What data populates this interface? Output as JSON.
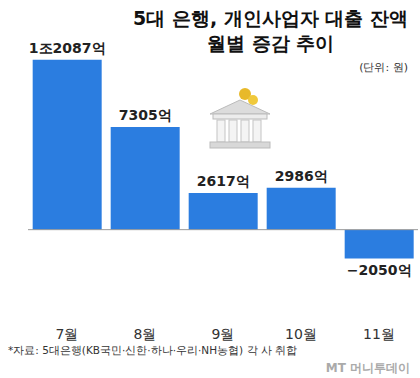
{
  "chart_data": {
    "type": "bar",
    "title": "5대 은행, 개인사업자 대출 잔액",
    "subtitle": "월별 증감 추이",
    "unit": "(단위: 원)",
    "categories": [
      "7월",
      "8월",
      "9월",
      "10월",
      "11월"
    ],
    "values": [
      12087,
      7305,
      2617,
      2986,
      -2050
    ],
    "value_labels": [
      "1조2087억",
      "7305억",
      "2617억",
      "2986억",
      "−2050억"
    ],
    "color": "#2b7de0",
    "ylim": [
      -6500,
      13000
    ],
    "grid": false,
    "data_labels": true,
    "tick_labels": "x",
    "source": "*자료: 5대은행(KB국민·신한·하나·우리·NH농협) 각 사 취합",
    "credit": "MT 머니투데이"
  }
}
